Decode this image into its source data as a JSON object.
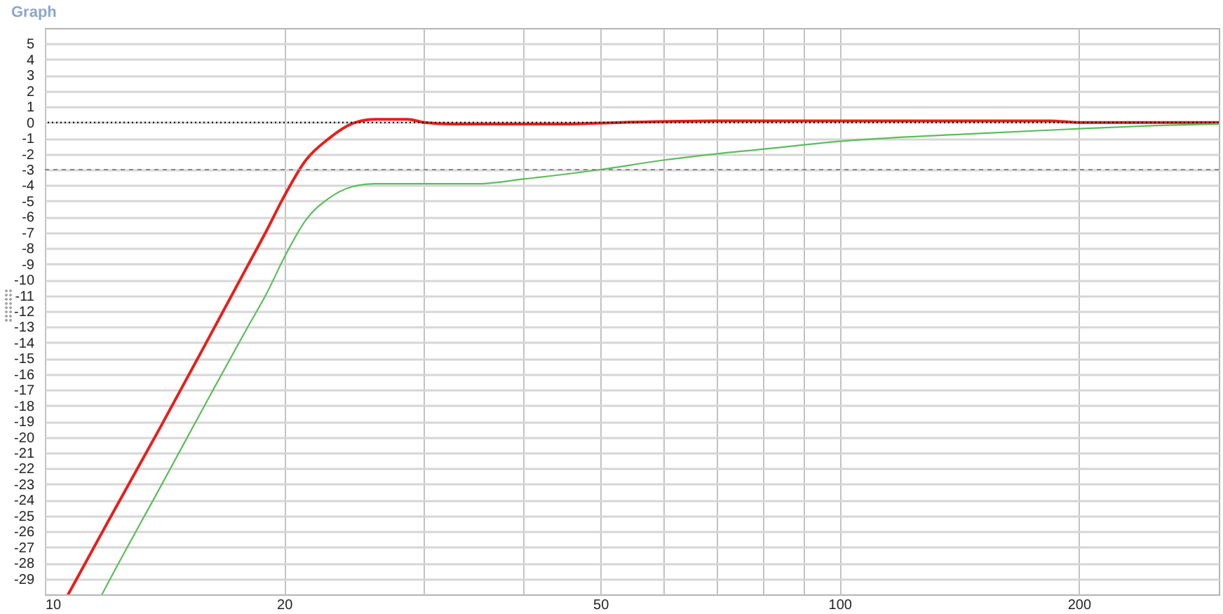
{
  "chart_data": {
    "type": "line",
    "title": "Graph",
    "series": [
      {
        "color": "#e5201c",
        "x": [
          10.7,
          12,
          14,
          16,
          18,
          19,
          20,
          21.3,
          22.8,
          24.3,
          26,
          28.6,
          30,
          32.6,
          44.8,
          53,
          70,
          184,
          200,
          300
        ],
        "values": [
          -30,
          -25.4,
          -19.3,
          -13.9,
          -9.1,
          -6.9,
          -4.7,
          -2.4,
          -1.0,
          -0.1,
          0.2,
          0.2,
          0,
          -0.1,
          -0.1,
          0,
          0.1,
          0.1,
          0,
          0
        ]
      },
      {
        "color": "#5cbd5c",
        "x": [
          11.8,
          12,
          14,
          16,
          18,
          19,
          20,
          21.3,
          22.8,
          24.3,
          26,
          28,
          35,
          40,
          50,
          60,
          67,
          80,
          100,
          150,
          200,
          250,
          300
        ],
        "values": [
          -30,
          -29.3,
          -23.1,
          -17.7,
          -13.0,
          -10.9,
          -8.6,
          -6.2,
          -4.8,
          -4.1,
          -3.9,
          -3.9,
          -3.9,
          -3.6,
          -3.0,
          -2.4,
          -2.1,
          -1.7,
          -1.2,
          -0.7,
          -0.4,
          -0.2,
          -0.1
        ]
      }
    ],
    "xlim": [
      10,
      300
    ],
    "xticks": [
      10,
      20,
      {
        "value": 30,
        "label": null
      },
      {
        "value": 40,
        "label": null
      },
      50,
      {
        "value": 60,
        "label": null
      },
      {
        "value": 70,
        "label": null
      },
      {
        "value": 80,
        "label": null
      },
      {
        "value": 90,
        "label": null
      },
      100,
      200
    ],
    "ylim": [
      -30,
      6
    ],
    "yticks": [
      5,
      4,
      3,
      2,
      1,
      0,
      -1,
      -2,
      -3,
      -4,
      -5,
      -6,
      -7,
      -8,
      -9,
      -10,
      -11,
      -12,
      -13,
      -14,
      -15,
      -16,
      -17,
      -18,
      -19,
      -20,
      -21,
      -22,
      -23,
      -24,
      -25,
      -26,
      -27,
      -28,
      -29
    ],
    "log": "x",
    "grid": true,
    "ref_lines": [
      {
        "axis": "y",
        "value": 0,
        "color": "#000000",
        "line_style": "dotted"
      },
      {
        "axis": "y",
        "value": -3,
        "color": "#8a8a8a",
        "line_style": "dashed"
      }
    ]
  }
}
